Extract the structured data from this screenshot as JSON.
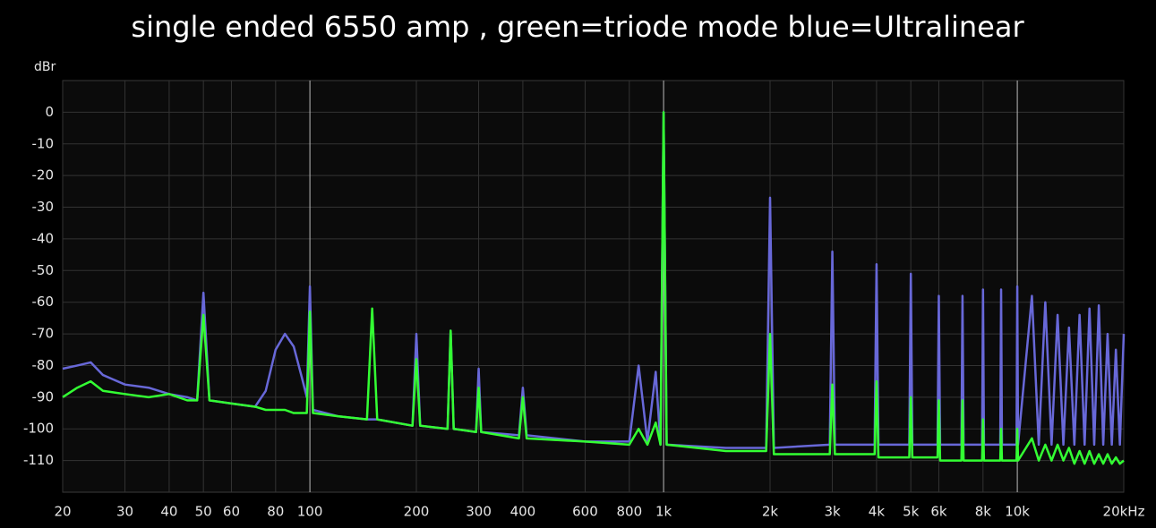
{
  "chart_data": {
    "type": "line",
    "title": "single ended 6550 amp , green=triode mode blue=Ultralinear",
    "y_label": "dBr",
    "log_x": true,
    "grid": true,
    "xlim": [
      20,
      20000
    ],
    "ylim": [
      -120,
      10
    ],
    "xticks": [
      20,
      30,
      40,
      50,
      60,
      80,
      100,
      200,
      300,
      400,
      600,
      800,
      {
        "value": 1000,
        "label": "1k"
      },
      {
        "value": 2000,
        "label": "2k"
      },
      {
        "value": 3000,
        "label": "3k"
      },
      {
        "value": 4000,
        "label": "4k"
      },
      {
        "value": 5000,
        "label": "5k"
      },
      {
        "value": 6000,
        "label": "6k"
      },
      {
        "value": 8000,
        "label": "8k"
      },
      {
        "value": 10000,
        "label": "10k"
      },
      {
        "value": 20000,
        "label": "20kHz"
      }
    ],
    "yticks": [
      0,
      -10,
      -20,
      -30,
      -40,
      -50,
      -60,
      -70,
      -80,
      -90,
      -100,
      -110
    ],
    "x": [
      20,
      22,
      24,
      26,
      30,
      35,
      40,
      45,
      48,
      50,
      52,
      60,
      70,
      75,
      80,
      85,
      90,
      95,
      98,
      100,
      102,
      120,
      145,
      150,
      155,
      195,
      200,
      205,
      245,
      250,
      255,
      295,
      300,
      305,
      390,
      400,
      410,
      600,
      800,
      850,
      900,
      950,
      980,
      1000,
      1020,
      1500,
      1950,
      2000,
      2050,
      2950,
      3000,
      3050,
      3950,
      4000,
      4050,
      4950,
      5000,
      5050,
      5950,
      6000,
      6050,
      6950,
      7000,
      7050,
      7950,
      8000,
      8050,
      8950,
      9000,
      9050,
      9950,
      10000,
      10050,
      11000,
      11500,
      12000,
      12500,
      13000,
      13500,
      14000,
      14500,
      15000,
      15500,
      16000,
      16500,
      17000,
      17500,
      18000,
      18500,
      19000,
      19500,
      20000
    ],
    "series": [
      {
        "color": "#6868d8",
        "values": [
          -81,
          -80,
          -79,
          -83,
          -86,
          -87,
          -89,
          -90,
          -91,
          -57,
          -91,
          -92,
          -93,
          -88,
          -75,
          -70,
          -74,
          -84,
          -90,
          -55,
          -94,
          -96,
          -97,
          -97,
          -97,
          -99,
          -70,
          -99,
          -100,
          -69,
          -100,
          -101,
          -81,
          -101,
          -102,
          -87,
          -102,
          -104,
          -104,
          -80,
          -104,
          -82,
          -105,
          0,
          -105,
          -106,
          -106,
          -27,
          -106,
          -105,
          -44,
          -105,
          -105,
          -48,
          -105,
          -105,
          -51,
          -105,
          -105,
          -58,
          -105,
          -105,
          -58,
          -105,
          -105,
          -56,
          -105,
          -105,
          -56,
          -105,
          -105,
          -55,
          -105,
          -58,
          -105,
          -60,
          -105,
          -64,
          -105,
          -68,
          -105,
          -64,
          -105,
          -62,
          -105,
          -61,
          -105,
          -70,
          -105,
          -75,
          -105,
          -70
        ]
      },
      {
        "color": "#33ff33",
        "values": [
          -90,
          -87,
          -85,
          -88,
          -89,
          -90,
          -89,
          -91,
          -91,
          -64,
          -91,
          -92,
          -93,
          -94,
          -94,
          -94,
          -95,
          -95,
          -95,
          -63,
          -95,
          -96,
          -97,
          -62,
          -97,
          -99,
          -78,
          -99,
          -100,
          -69,
          -100,
          -101,
          -87,
          -101,
          -103,
          -90,
          -103,
          -104,
          -105,
          -100,
          -105,
          -98,
          -105,
          0,
          -105,
          -107,
          -107,
          -70,
          -108,
          -108,
          -86,
          -108,
          -108,
          -85,
          -109,
          -109,
          -90,
          -109,
          -109,
          -91,
          -110,
          -110,
          -91,
          -110,
          -110,
          -97,
          -110,
          -110,
          -100,
          -110,
          -110,
          -100,
          -110,
          -103,
          -110,
          -105,
          -110,
          -105,
          -110,
          -106,
          -111,
          -107,
          -111,
          -107,
          -111,
          -108,
          -111,
          -108,
          -111,
          -109,
          -111,
          -110
        ]
      }
    ]
  }
}
